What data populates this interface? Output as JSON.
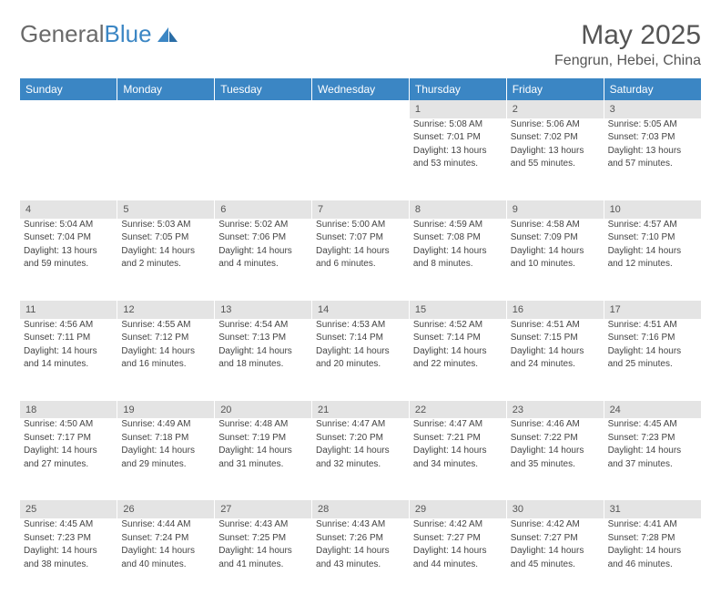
{
  "logo": {
    "text1": "General",
    "text2": "Blue"
  },
  "header": {
    "month": "May 2025",
    "location": "Fengrun, Hebei, China"
  },
  "colors": {
    "header_bg": "#3b86c4",
    "header_text": "#ffffff",
    "daynum_bg": "#e4e4e4",
    "text": "#444444",
    "logo_gray": "#6a6a6a",
    "logo_blue": "#3b86c4"
  },
  "day_labels": [
    "Sunday",
    "Monday",
    "Tuesday",
    "Wednesday",
    "Thursday",
    "Friday",
    "Saturday"
  ],
  "weeks": [
    {
      "nums": [
        "",
        "",
        "",
        "",
        "1",
        "2",
        "3"
      ],
      "cells": [
        null,
        null,
        null,
        null,
        {
          "sunrise": "Sunrise: 5:08 AM",
          "sunset": "Sunset: 7:01 PM",
          "d1": "Daylight: 13 hours",
          "d2": "and 53 minutes."
        },
        {
          "sunrise": "Sunrise: 5:06 AM",
          "sunset": "Sunset: 7:02 PM",
          "d1": "Daylight: 13 hours",
          "d2": "and 55 minutes."
        },
        {
          "sunrise": "Sunrise: 5:05 AM",
          "sunset": "Sunset: 7:03 PM",
          "d1": "Daylight: 13 hours",
          "d2": "and 57 minutes."
        }
      ]
    },
    {
      "nums": [
        "4",
        "5",
        "6",
        "7",
        "8",
        "9",
        "10"
      ],
      "cells": [
        {
          "sunrise": "Sunrise: 5:04 AM",
          "sunset": "Sunset: 7:04 PM",
          "d1": "Daylight: 13 hours",
          "d2": "and 59 minutes."
        },
        {
          "sunrise": "Sunrise: 5:03 AM",
          "sunset": "Sunset: 7:05 PM",
          "d1": "Daylight: 14 hours",
          "d2": "and 2 minutes."
        },
        {
          "sunrise": "Sunrise: 5:02 AM",
          "sunset": "Sunset: 7:06 PM",
          "d1": "Daylight: 14 hours",
          "d2": "and 4 minutes."
        },
        {
          "sunrise": "Sunrise: 5:00 AM",
          "sunset": "Sunset: 7:07 PM",
          "d1": "Daylight: 14 hours",
          "d2": "and 6 minutes."
        },
        {
          "sunrise": "Sunrise: 4:59 AM",
          "sunset": "Sunset: 7:08 PM",
          "d1": "Daylight: 14 hours",
          "d2": "and 8 minutes."
        },
        {
          "sunrise": "Sunrise: 4:58 AM",
          "sunset": "Sunset: 7:09 PM",
          "d1": "Daylight: 14 hours",
          "d2": "and 10 minutes."
        },
        {
          "sunrise": "Sunrise: 4:57 AM",
          "sunset": "Sunset: 7:10 PM",
          "d1": "Daylight: 14 hours",
          "d2": "and 12 minutes."
        }
      ]
    },
    {
      "nums": [
        "11",
        "12",
        "13",
        "14",
        "15",
        "16",
        "17"
      ],
      "cells": [
        {
          "sunrise": "Sunrise: 4:56 AM",
          "sunset": "Sunset: 7:11 PM",
          "d1": "Daylight: 14 hours",
          "d2": "and 14 minutes."
        },
        {
          "sunrise": "Sunrise: 4:55 AM",
          "sunset": "Sunset: 7:12 PM",
          "d1": "Daylight: 14 hours",
          "d2": "and 16 minutes."
        },
        {
          "sunrise": "Sunrise: 4:54 AM",
          "sunset": "Sunset: 7:13 PM",
          "d1": "Daylight: 14 hours",
          "d2": "and 18 minutes."
        },
        {
          "sunrise": "Sunrise: 4:53 AM",
          "sunset": "Sunset: 7:14 PM",
          "d1": "Daylight: 14 hours",
          "d2": "and 20 minutes."
        },
        {
          "sunrise": "Sunrise: 4:52 AM",
          "sunset": "Sunset: 7:14 PM",
          "d1": "Daylight: 14 hours",
          "d2": "and 22 minutes."
        },
        {
          "sunrise": "Sunrise: 4:51 AM",
          "sunset": "Sunset: 7:15 PM",
          "d1": "Daylight: 14 hours",
          "d2": "and 24 minutes."
        },
        {
          "sunrise": "Sunrise: 4:51 AM",
          "sunset": "Sunset: 7:16 PM",
          "d1": "Daylight: 14 hours",
          "d2": "and 25 minutes."
        }
      ]
    },
    {
      "nums": [
        "18",
        "19",
        "20",
        "21",
        "22",
        "23",
        "24"
      ],
      "cells": [
        {
          "sunrise": "Sunrise: 4:50 AM",
          "sunset": "Sunset: 7:17 PM",
          "d1": "Daylight: 14 hours",
          "d2": "and 27 minutes."
        },
        {
          "sunrise": "Sunrise: 4:49 AM",
          "sunset": "Sunset: 7:18 PM",
          "d1": "Daylight: 14 hours",
          "d2": "and 29 minutes."
        },
        {
          "sunrise": "Sunrise: 4:48 AM",
          "sunset": "Sunset: 7:19 PM",
          "d1": "Daylight: 14 hours",
          "d2": "and 31 minutes."
        },
        {
          "sunrise": "Sunrise: 4:47 AM",
          "sunset": "Sunset: 7:20 PM",
          "d1": "Daylight: 14 hours",
          "d2": "and 32 minutes."
        },
        {
          "sunrise": "Sunrise: 4:47 AM",
          "sunset": "Sunset: 7:21 PM",
          "d1": "Daylight: 14 hours",
          "d2": "and 34 minutes."
        },
        {
          "sunrise": "Sunrise: 4:46 AM",
          "sunset": "Sunset: 7:22 PM",
          "d1": "Daylight: 14 hours",
          "d2": "and 35 minutes."
        },
        {
          "sunrise": "Sunrise: 4:45 AM",
          "sunset": "Sunset: 7:23 PM",
          "d1": "Daylight: 14 hours",
          "d2": "and 37 minutes."
        }
      ]
    },
    {
      "nums": [
        "25",
        "26",
        "27",
        "28",
        "29",
        "30",
        "31"
      ],
      "cells": [
        {
          "sunrise": "Sunrise: 4:45 AM",
          "sunset": "Sunset: 7:23 PM",
          "d1": "Daylight: 14 hours",
          "d2": "and 38 minutes."
        },
        {
          "sunrise": "Sunrise: 4:44 AM",
          "sunset": "Sunset: 7:24 PM",
          "d1": "Daylight: 14 hours",
          "d2": "and 40 minutes."
        },
        {
          "sunrise": "Sunrise: 4:43 AM",
          "sunset": "Sunset: 7:25 PM",
          "d1": "Daylight: 14 hours",
          "d2": "and 41 minutes."
        },
        {
          "sunrise": "Sunrise: 4:43 AM",
          "sunset": "Sunset: 7:26 PM",
          "d1": "Daylight: 14 hours",
          "d2": "and 43 minutes."
        },
        {
          "sunrise": "Sunrise: 4:42 AM",
          "sunset": "Sunset: 7:27 PM",
          "d1": "Daylight: 14 hours",
          "d2": "and 44 minutes."
        },
        {
          "sunrise": "Sunrise: 4:42 AM",
          "sunset": "Sunset: 7:27 PM",
          "d1": "Daylight: 14 hours",
          "d2": "and 45 minutes."
        },
        {
          "sunrise": "Sunrise: 4:41 AM",
          "sunset": "Sunset: 7:28 PM",
          "d1": "Daylight: 14 hours",
          "d2": "and 46 minutes."
        }
      ]
    }
  ]
}
